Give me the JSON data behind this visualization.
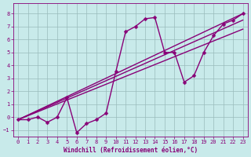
{
  "title": "",
  "xlabel": "Windchill (Refroidissement éolien,°C)",
  "ylabel": "",
  "bg_color": "#c8eaea",
  "line_color": "#880077",
  "grid_color": "#99bbbb",
  "xlim": [
    -0.5,
    23.5
  ],
  "ylim": [
    -1.5,
    8.8
  ],
  "yticks": [
    -1,
    0,
    1,
    2,
    3,
    4,
    5,
    6,
    7,
    8
  ],
  "xticks": [
    0,
    1,
    2,
    3,
    4,
    5,
    6,
    7,
    8,
    9,
    10,
    11,
    12,
    13,
    14,
    15,
    16,
    17,
    18,
    19,
    20,
    21,
    22,
    23
  ],
  "series": [
    {
      "x": [
        0,
        1,
        2,
        3,
        4,
        5,
        6,
        7,
        8,
        9,
        10,
        11,
        12,
        13,
        14,
        15,
        16,
        17,
        18,
        19,
        20,
        21,
        22,
        23
      ],
      "y": [
        -0.2,
        -0.2,
        0.0,
        -0.4,
        0.0,
        1.5,
        -1.2,
        -0.5,
        -0.2,
        0.3,
        3.5,
        6.6,
        7.0,
        7.6,
        7.7,
        5.0,
        5.0,
        2.7,
        3.2,
        5.0,
        6.3,
        7.2,
        7.5,
        8.0
      ],
      "marker": "D",
      "markersize": 2.5,
      "linewidth": 1.0
    },
    {
      "x": [
        0,
        23
      ],
      "y": [
        -0.2,
        8.0
      ],
      "marker": null,
      "markersize": 0,
      "linewidth": 1.0
    },
    {
      "x": [
        0,
        23
      ],
      "y": [
        -0.2,
        7.5
      ],
      "marker": null,
      "markersize": 0,
      "linewidth": 1.0
    },
    {
      "x": [
        0,
        23
      ],
      "y": [
        -0.2,
        6.8
      ],
      "marker": null,
      "markersize": 0,
      "linewidth": 1.0
    }
  ]
}
